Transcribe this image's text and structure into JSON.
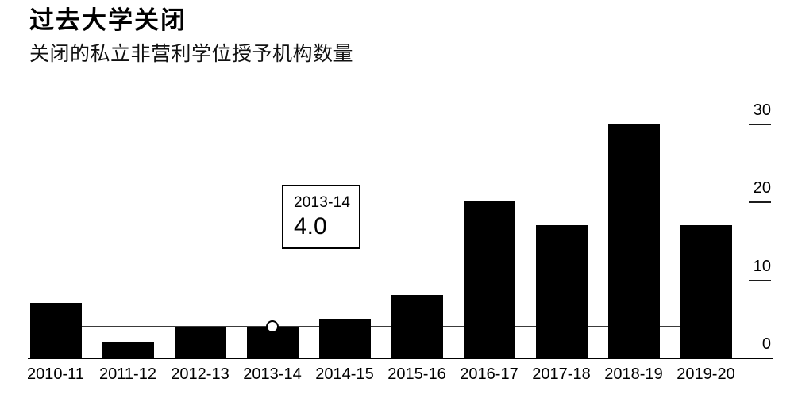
{
  "header": {
    "title": "过去大学关闭",
    "subtitle": "关闭的私立非营利学位授予机构数量"
  },
  "tooltip": {
    "label": "2013-14",
    "value": "4.0"
  },
  "chart_data": {
    "type": "bar",
    "categories": [
      "2010-11",
      "2011-12",
      "2012-13",
      "2013-14",
      "2014-15",
      "2015-16",
      "2016-17",
      "2017-18",
      "2018-19",
      "2019-20"
    ],
    "values": [
      7,
      2,
      4,
      4,
      5,
      8,
      20,
      17,
      30,
      17
    ],
    "title": "过去大学关闭",
    "subtitle": "关闭的私立非营利学位授予机构数量",
    "xlabel": "",
    "ylabel": "",
    "ylim": [
      0,
      30
    ],
    "yticks": [
      0,
      10,
      20,
      30
    ],
    "axis_side": "right",
    "grid": false,
    "legend": null,
    "highlight": {
      "category": "2013-14",
      "index": 3,
      "value": 4.0,
      "reference_line_value": 4.0,
      "marker": "white-circle",
      "tooltip_label": "2013-14",
      "tooltip_value": "4.0"
    }
  },
  "colors": {
    "background": "#ffffff",
    "bar": "#000000",
    "text": "#000000",
    "axis_line": "#000000",
    "reference_line": "#3a3a3a",
    "tick_mark": "#1c1c1c",
    "tooltip_border": "#000000",
    "tooltip_background": "#ffffff",
    "marker_fill": "#ffffff",
    "marker_stroke": "#000000"
  }
}
